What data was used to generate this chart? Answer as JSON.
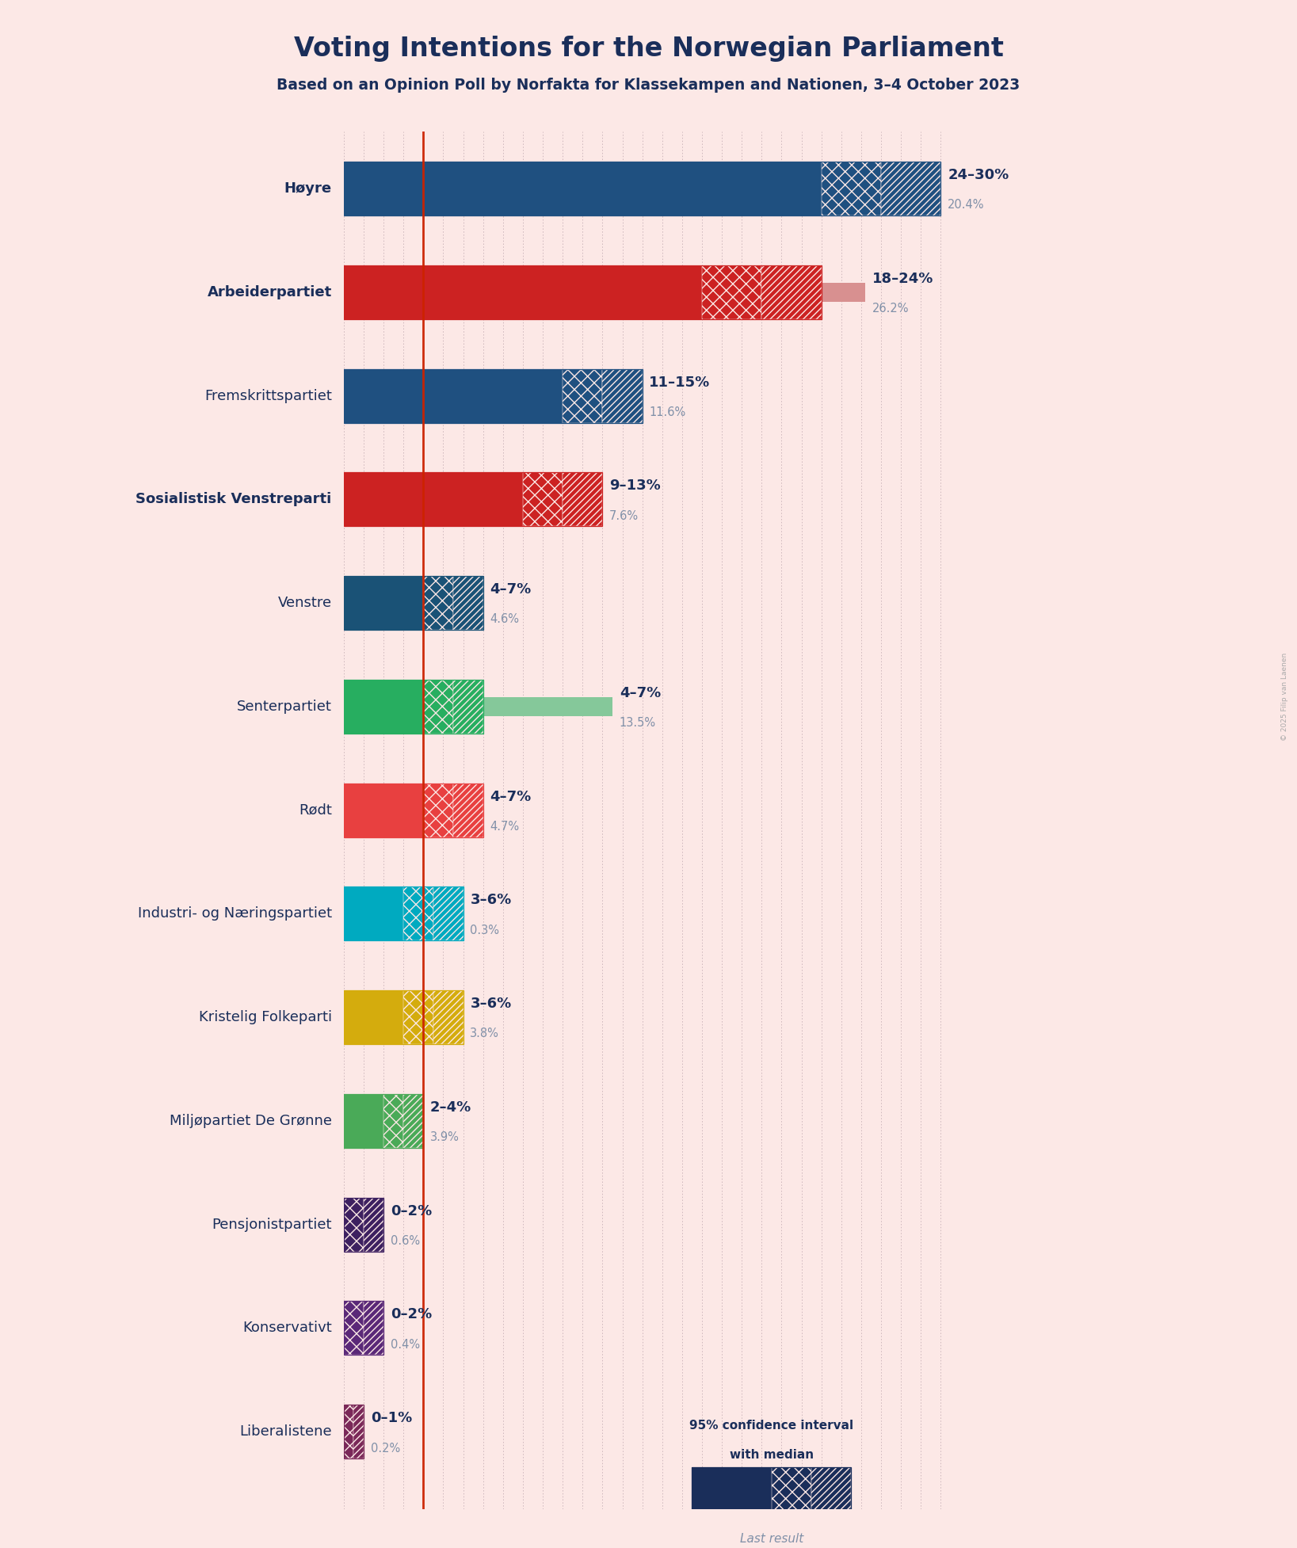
{
  "title": "Voting Intentions for the Norwegian Parliament",
  "subtitle": "Based on an Opinion Poll by Norfakta for Klassekampen and Nationen, 3–4 October 2023",
  "copyright": "© 2025 Filip van Laenen",
  "background_color": "#fce8e6",
  "parties": [
    {
      "name": "Høyre",
      "ci_low": 24,
      "ci_high": 30,
      "last": 20.4,
      "color": "#1f5080",
      "last_color": "#9aaec0",
      "label": "24–30%",
      "last_label": "20.4%",
      "name_bold": true
    },
    {
      "name": "Arbeiderpartiet",
      "ci_low": 18,
      "ci_high": 24,
      "last": 26.2,
      "color": "#cc2222",
      "last_color": "#d89090",
      "label": "18–24%",
      "last_label": "26.2%",
      "name_bold": true
    },
    {
      "name": "Fremskrittspartiet",
      "ci_low": 11,
      "ci_high": 15,
      "last": 11.6,
      "color": "#1f5080",
      "last_color": "#9aaec0",
      "label": "11–15%",
      "last_label": "11.6%",
      "name_bold": false
    },
    {
      "name": "Sosialistisk Venstreparti",
      "ci_low": 9,
      "ci_high": 13,
      "last": 7.6,
      "color": "#cc2222",
      "last_color": "#d89090",
      "label": "9–13%",
      "last_label": "7.6%",
      "name_bold": true
    },
    {
      "name": "Venstre",
      "ci_low": 4,
      "ci_high": 7,
      "last": 4.6,
      "color": "#1a5276",
      "last_color": "#94aabf",
      "label": "4–7%",
      "last_label": "4.6%",
      "name_bold": false
    },
    {
      "name": "Senterpartiet",
      "ci_low": 4,
      "ci_high": 7,
      "last": 13.5,
      "color": "#27ae60",
      "last_color": "#85c89a",
      "label": "4–7%",
      "last_label": "13.5%",
      "name_bold": false
    },
    {
      "name": "Rødt",
      "ci_low": 4,
      "ci_high": 7,
      "last": 4.7,
      "color": "#e84040",
      "last_color": "#e8a090",
      "label": "4–7%",
      "last_label": "4.7%",
      "name_bold": false
    },
    {
      "name": "Industri- og Næringspartiet",
      "ci_low": 3,
      "ci_high": 6,
      "last": 0.3,
      "color": "#00aac0",
      "last_color": "#80c8d8",
      "label": "3–6%",
      "last_label": "0.3%",
      "name_bold": false
    },
    {
      "name": "Kristelig Folkeparti",
      "ci_low": 3,
      "ci_high": 6,
      "last": 3.8,
      "color": "#d4ac0d",
      "last_color": "#e8d480",
      "label": "3–6%",
      "last_label": "3.8%",
      "name_bold": false
    },
    {
      "name": "Miljøpartiet De Grønne",
      "ci_low": 2,
      "ci_high": 4,
      "last": 3.9,
      "color": "#4aaa58",
      "last_color": "#90c898",
      "label": "2–4%",
      "last_label": "3.9%",
      "name_bold": false
    },
    {
      "name": "Pensjonistpartiet",
      "ci_low": 0,
      "ci_high": 2,
      "last": 0.6,
      "color": "#3d2060",
      "last_color": "#9890b0",
      "label": "0–2%",
      "last_label": "0.6%",
      "name_bold": false
    },
    {
      "name": "Konservativt",
      "ci_low": 0,
      "ci_high": 2,
      "last": 0.4,
      "color": "#5a2878",
      "last_color": "#a090b8",
      "label": "0–2%",
      "last_label": "0.4%",
      "name_bold": false
    },
    {
      "name": "Liberalistene",
      "ci_low": 0,
      "ci_high": 1,
      "last": 0.2,
      "color": "#7a2858",
      "last_color": "#a888a0",
      "label": "0–1%",
      "last_label": "0.2%",
      "name_bold": false
    }
  ],
  "red_line_x": 4.0,
  "axis_max": 30,
  "median_line_color": "#cc2200",
  "grid_color": "#b8a0a8",
  "label_color": "#1a2e5a",
  "last_label_color": "#8090a8"
}
